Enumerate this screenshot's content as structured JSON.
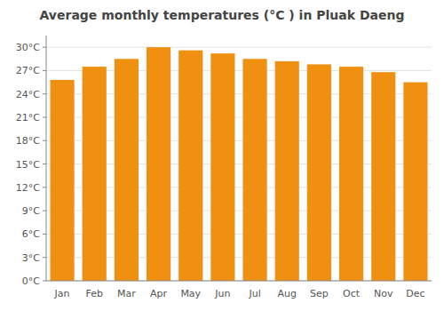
{
  "chart_data": {
    "type": "bar",
    "title": "Average monthly temperatures (°C ) in Pluak Daeng",
    "categories": [
      "Jan",
      "Feb",
      "Mar",
      "Apr",
      "May",
      "Jun",
      "Jul",
      "Aug",
      "Sep",
      "Oct",
      "Nov",
      "Dec"
    ],
    "values": [
      25.8,
      27.5,
      28.5,
      30.0,
      29.6,
      29.2,
      28.5,
      28.2,
      27.8,
      27.5,
      26.8,
      25.5
    ],
    "color": "#F09010",
    "ylim": [
      0,
      31.5
    ],
    "yticks": [
      {
        "value": 0,
        "label": "0°C"
      },
      {
        "value": 3,
        "label": "3°C"
      },
      {
        "value": 6,
        "label": "6°C"
      },
      {
        "value": 9,
        "label": "9°C"
      },
      {
        "value": 12,
        "label": "12°C"
      },
      {
        "value": 15,
        "label": "15°C"
      },
      {
        "value": 18,
        "label": "18°C"
      },
      {
        "value": 21,
        "label": "21°C"
      },
      {
        "value": 24,
        "label": "24°C"
      },
      {
        "value": 27,
        "label": "27°C"
      },
      {
        "value": 30,
        "label": "30°C"
      }
    ],
    "grid": true
  }
}
